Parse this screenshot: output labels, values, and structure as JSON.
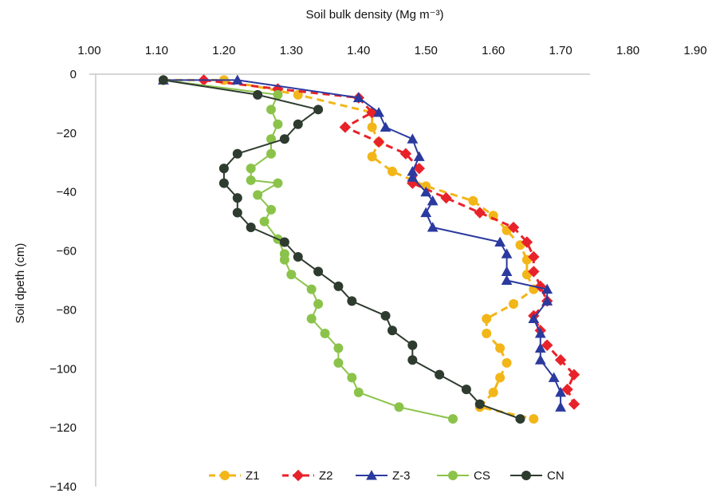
{
  "chart_data": {
    "type": "line",
    "xlabel": "Soil bulk density (Mg m⁻³)",
    "ylabel": "Soil dpeth (cm)",
    "x_ticks": [
      "1.00",
      "1.10",
      "1.20",
      "1.30",
      "1.40",
      "1.50",
      "1.60",
      "1.70",
      "1.80",
      "1.90"
    ],
    "y_ticks": [
      "0",
      "−20",
      "−40",
      "−60",
      "−80",
      "−100",
      "−120",
      "−140"
    ],
    "xlim": [
      1.0,
      1.9
    ],
    "ylim": [
      -140,
      0
    ],
    "x_axis_position": "top",
    "grid": false,
    "legend_position": "bottom",
    "series": [
      {
        "name": "Z1",
        "color": "#F2B619",
        "dash": "dashed",
        "marker": "circle",
        "points": [
          [
            1.11,
            -2
          ],
          [
            1.2,
            -2
          ],
          [
            1.31,
            -7
          ],
          [
            1.42,
            -13
          ],
          [
            1.42,
            -18
          ],
          [
            1.43,
            -23
          ],
          [
            1.42,
            -28
          ],
          [
            1.45,
            -33
          ],
          [
            1.5,
            -38
          ],
          [
            1.57,
            -43
          ],
          [
            1.6,
            -48
          ],
          [
            1.62,
            -53
          ],
          [
            1.64,
            -58
          ],
          [
            1.65,
            -63
          ],
          [
            1.65,
            -68
          ],
          [
            1.66,
            -73
          ],
          [
            1.63,
            -78
          ],
          [
            1.59,
            -83
          ],
          [
            1.59,
            -88
          ],
          [
            1.61,
            -93
          ],
          [
            1.62,
            -98
          ],
          [
            1.61,
            -103
          ],
          [
            1.6,
            -108
          ],
          [
            1.58,
            -113
          ],
          [
            1.66,
            -117
          ]
        ]
      },
      {
        "name": "Z2",
        "color": "#E8222A",
        "dash": "dashed",
        "marker": "diamond",
        "points": [
          [
            1.17,
            -2
          ],
          [
            1.28,
            -5
          ],
          [
            1.4,
            -8
          ],
          [
            1.42,
            -13
          ],
          [
            1.38,
            -18
          ],
          [
            1.43,
            -23
          ],
          [
            1.47,
            -27
          ],
          [
            1.49,
            -32
          ],
          [
            1.48,
            -37
          ],
          [
            1.53,
            -42
          ],
          [
            1.58,
            -47
          ],
          [
            1.63,
            -52
          ],
          [
            1.65,
            -57
          ],
          [
            1.66,
            -62
          ],
          [
            1.66,
            -67
          ],
          [
            1.67,
            -72
          ],
          [
            1.68,
            -77
          ],
          [
            1.66,
            -82
          ],
          [
            1.67,
            -87
          ],
          [
            1.68,
            -92
          ],
          [
            1.7,
            -97
          ],
          [
            1.72,
            -102
          ],
          [
            1.71,
            -107
          ],
          [
            1.72,
            -112
          ]
        ]
      },
      {
        "name": "Z-3",
        "color": "#2B3A9E",
        "dash": "solid",
        "marker": "triangle",
        "points": [
          [
            1.11,
            -2
          ],
          [
            1.22,
            -2
          ],
          [
            1.4,
            -8
          ],
          [
            1.43,
            -13
          ],
          [
            1.44,
            -18
          ],
          [
            1.48,
            -22
          ],
          [
            1.49,
            -28
          ],
          [
            1.48,
            -33
          ],
          [
            1.48,
            -35
          ],
          [
            1.5,
            -40
          ],
          [
            1.51,
            -43
          ],
          [
            1.5,
            -47
          ],
          [
            1.51,
            -52
          ],
          [
            1.61,
            -57
          ],
          [
            1.62,
            -61
          ],
          [
            1.62,
            -67
          ],
          [
            1.62,
            -70
          ],
          [
            1.68,
            -73
          ],
          [
            1.68,
            -77
          ],
          [
            1.66,
            -83
          ],
          [
            1.67,
            -88
          ],
          [
            1.67,
            -93
          ],
          [
            1.67,
            -97
          ],
          [
            1.69,
            -103
          ],
          [
            1.7,
            -108
          ],
          [
            1.7,
            -113
          ]
        ]
      },
      {
        "name": "CS",
        "color": "#8BC34A",
        "dash": "solid",
        "marker": "circle",
        "points": [
          [
            1.11,
            -2
          ],
          [
            1.28,
            -7
          ],
          [
            1.27,
            -12
          ],
          [
            1.28,
            -17
          ],
          [
            1.27,
            -22
          ],
          [
            1.27,
            -27
          ],
          [
            1.24,
            -32
          ],
          [
            1.24,
            -36
          ],
          [
            1.28,
            -37
          ],
          [
            1.25,
            -41
          ],
          [
            1.27,
            -46
          ],
          [
            1.26,
            -50
          ],
          [
            1.28,
            -56
          ],
          [
            1.29,
            -61
          ],
          [
            1.29,
            -63
          ],
          [
            1.3,
            -68
          ],
          [
            1.33,
            -73
          ],
          [
            1.34,
            -78
          ],
          [
            1.33,
            -83
          ],
          [
            1.35,
            -88
          ],
          [
            1.37,
            -93
          ],
          [
            1.37,
            -98
          ],
          [
            1.39,
            -103
          ],
          [
            1.4,
            -108
          ],
          [
            1.46,
            -113
          ],
          [
            1.54,
            -117
          ]
        ]
      },
      {
        "name": "CN",
        "color": "#2E3B2F",
        "dash": "solid",
        "marker": "circle",
        "points": [
          [
            1.11,
            -2
          ],
          [
            1.25,
            -7
          ],
          [
            1.34,
            -12
          ],
          [
            1.31,
            -17
          ],
          [
            1.29,
            -22
          ],
          [
            1.22,
            -27
          ],
          [
            1.2,
            -32
          ],
          [
            1.2,
            -37
          ],
          [
            1.22,
            -42
          ],
          [
            1.22,
            -47
          ],
          [
            1.24,
            -52
          ],
          [
            1.29,
            -57
          ],
          [
            1.31,
            -62
          ],
          [
            1.34,
            -67
          ],
          [
            1.37,
            -72
          ],
          [
            1.39,
            -77
          ],
          [
            1.44,
            -82
          ],
          [
            1.45,
            -87
          ],
          [
            1.48,
            -92
          ],
          [
            1.48,
            -97
          ],
          [
            1.52,
            -102
          ],
          [
            1.56,
            -107
          ],
          [
            1.58,
            -112
          ],
          [
            1.64,
            -117
          ]
        ]
      }
    ]
  }
}
